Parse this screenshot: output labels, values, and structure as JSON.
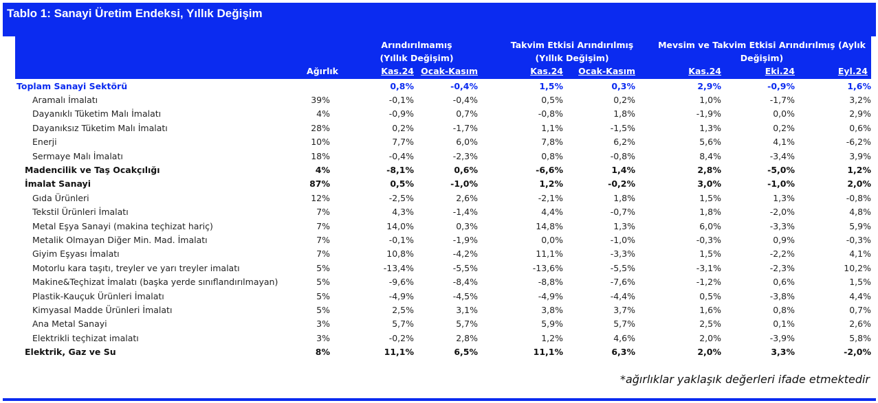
{
  "title": "Tablo 1: Sanayi Üretim Endeksi, Yıllık Değişim",
  "header": {
    "weight_label": "Ağırlık",
    "groups": [
      {
        "line1": "Arındırılmamış",
        "line2": "(Yıllık Değişim)"
      },
      {
        "line1": "Takvim Etkisi Arındırılmış",
        "line2": "(Yıllık Değişim)"
      },
      {
        "line1": "Mevsim ve Takvim Etkisi Arındırılmış (Aylık",
        "line2": "Değişim)"
      }
    ],
    "subcols": [
      "Kas.24",
      "Ocak-Kasım",
      "Kas.24",
      "Ocak-Kasım",
      "Kas.24",
      "Eki.24",
      "Eyl.24"
    ]
  },
  "rows": [
    {
      "label": "Toplam Sanayi Sektörü",
      "style": "total",
      "weight": "",
      "values": [
        "0,8%",
        "-0,4%",
        "1,5%",
        "0,3%",
        "2,9%",
        "-0,9%",
        "1,6%"
      ]
    },
    {
      "label": "Aramalı İmalatı",
      "style": "sub",
      "weight": "39%",
      "values": [
        "-0,1%",
        "-0,4%",
        "0,5%",
        "0,2%",
        "1,0%",
        "-1,7%",
        "3,2%"
      ]
    },
    {
      "label": "Dayanıklı Tüketim Malı İmalatı",
      "style": "sub",
      "weight": "4%",
      "values": [
        "-0,9%",
        "0,7%",
        "-0,8%",
        "1,8%",
        "-1,9%",
        "0,0%",
        "2,9%"
      ]
    },
    {
      "label": "Dayanıksız Tüketim Malı İmalatı",
      "style": "sub",
      "weight": "28%",
      "values": [
        "0,2%",
        "-1,7%",
        "1,1%",
        "-1,5%",
        "1,3%",
        "0,2%",
        "0,6%"
      ]
    },
    {
      "label": "Enerji",
      "style": "sub",
      "weight": "10%",
      "values": [
        "7,7%",
        "6,0%",
        "7,8%",
        "6,2%",
        "5,6%",
        "4,1%",
        "-6,2%"
      ]
    },
    {
      "label": "Sermaye Malı İmalatı",
      "style": "sub",
      "weight": "18%",
      "values": [
        "-0,4%",
        "-2,3%",
        "0,8%",
        "-0,8%",
        "8,4%",
        "-3,4%",
        "3,9%"
      ]
    },
    {
      "label": "Madencilik ve Taş Ocakçılığı",
      "style": "bold",
      "weight": "4%",
      "values": [
        "-8,1%",
        "0,6%",
        "-6,6%",
        "1,4%",
        "2,8%",
        "-5,0%",
        "1,2%"
      ]
    },
    {
      "label": "İmalat Sanayi",
      "style": "bold",
      "weight": "87%",
      "values": [
        "0,5%",
        "-1,0%",
        "1,2%",
        "-0,2%",
        "3,0%",
        "-1,0%",
        "2,0%"
      ]
    },
    {
      "label": "Gıda Ürünleri",
      "style": "sub",
      "weight": "12%",
      "values": [
        "-2,5%",
        "2,6%",
        "-2,1%",
        "1,8%",
        "1,5%",
        "1,3%",
        "-0,8%"
      ]
    },
    {
      "label": "Tekstil Ürünleri İmalatı",
      "style": "sub",
      "weight": "7%",
      "values": [
        "4,3%",
        "-1,4%",
        "4,4%",
        "-0,7%",
        "1,8%",
        "-2,0%",
        "4,8%"
      ]
    },
    {
      "label": "Metal Eşya Sanayi (makina teçhizat hariç)",
      "style": "sub",
      "weight": "7%",
      "values": [
        "14,0%",
        "0,3%",
        "14,8%",
        "1,3%",
        "6,0%",
        "-3,3%",
        "5,9%"
      ]
    },
    {
      "label": "Metalik Olmayan Diğer Min. Mad. İmalatı",
      "style": "sub",
      "weight": "7%",
      "values": [
        "-0,1%",
        "-1,9%",
        "0,0%",
        "-1,0%",
        "-0,3%",
        "0,9%",
        "-0,3%"
      ]
    },
    {
      "label": "Giyim Eşyası İmalatı",
      "style": "sub",
      "weight": "7%",
      "values": [
        "10,8%",
        "-4,2%",
        "11,1%",
        "-3,3%",
        "1,5%",
        "-2,2%",
        "4,1%"
      ]
    },
    {
      "label": "Motorlu kara taşıtı, treyler ve yarı treyler imalatı",
      "style": "sub",
      "weight": "5%",
      "values": [
        "-13,4%",
        "-5,5%",
        "-13,6%",
        "-5,5%",
        "-3,1%",
        "-2,3%",
        "10,2%"
      ]
    },
    {
      "label": "Makine&Teçhizat İmalatı (başka yerde sınıflandırılmayan)",
      "style": "sub",
      "weight": "5%",
      "values": [
        "-9,6%",
        "-8,4%",
        "-8,8%",
        "-7,6%",
        "-1,2%",
        "0,6%",
        "1,5%"
      ]
    },
    {
      "label": "Plastik-Kauçuk Ürünleri İmalatı",
      "style": "sub",
      "weight": "5%",
      "values": [
        "-4,9%",
        "-4,5%",
        "-4,9%",
        "-4,4%",
        "0,5%",
        "-3,8%",
        "4,4%"
      ]
    },
    {
      "label": "Kimyasal Madde Ürünleri İmalatı",
      "style": "sub",
      "weight": "5%",
      "values": [
        "2,5%",
        "3,1%",
        "3,8%",
        "3,7%",
        "1,6%",
        "0,8%",
        "0,7%"
      ]
    },
    {
      "label": "Ana Metal Sanayi",
      "style": "sub",
      "weight": "3%",
      "values": [
        "5,7%",
        "5,7%",
        "5,9%",
        "5,7%",
        "2,5%",
        "0,1%",
        "2,6%"
      ]
    },
    {
      "label": "Elektrikli teçhizat imalatı",
      "style": "sub",
      "weight": "3%",
      "values": [
        "-0,2%",
        "2,8%",
        "1,2%",
        "4,6%",
        "2,0%",
        "-3,9%",
        "5,8%"
      ]
    },
    {
      "label": "Elektrik, Gaz ve Su",
      "style": "bold",
      "weight": "8%",
      "values": [
        "11,1%",
        "6,5%",
        "11,1%",
        "6,3%",
        "2,0%",
        "3,3%",
        "-2,0%"
      ]
    }
  ],
  "footnote": "*ağırlıklar yaklaşık değerleri ifade etmektedir",
  "colors": {
    "accent": "#0b2bf0",
    "total_row_text": "#0b2bf0"
  }
}
